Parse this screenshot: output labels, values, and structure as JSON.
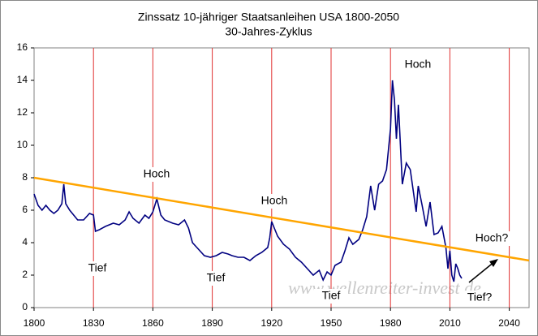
{
  "chart_data": {
    "type": "line",
    "title": "Zinssatz 10-jähriger Staatsanleihen USA 1800-2050",
    "subtitle": "30-Jahres-Zyklus",
    "xlim": [
      1800,
      2050
    ],
    "ylim": [
      0,
      16
    ],
    "xticks": [
      1800,
      1830,
      1860,
      1890,
      1920,
      1950,
      1980,
      2010,
      2040
    ],
    "yticks": [
      0,
      2,
      4,
      6,
      8,
      10,
      12,
      14,
      16
    ],
    "cycle_lines": [
      1830,
      1860,
      1890,
      1920,
      1950,
      1980,
      2010,
      2040
    ],
    "cycle_color": "#e03030",
    "series": [
      {
        "color": "#000080",
        "x": [
          1800,
          1802,
          1804,
          1806,
          1808,
          1810,
          1812,
          1814,
          1815,
          1816,
          1818,
          1820,
          1822,
          1825,
          1828,
          1830,
          1831,
          1833,
          1836,
          1840,
          1843,
          1846,
          1848,
          1850,
          1853,
          1856,
          1858,
          1860,
          1862,
          1864,
          1866,
          1870,
          1873,
          1876,
          1878,
          1880,
          1883,
          1886,
          1889,
          1892,
          1895,
          1898,
          1900,
          1903,
          1906,
          1909,
          1912,
          1915,
          1918,
          1919,
          1920,
          1921,
          1923,
          1926,
          1929,
          1932,
          1935,
          1938,
          1941,
          1944,
          1946,
          1948,
          1950,
          1952,
          1955,
          1957,
          1959,
          1961,
          1964,
          1966,
          1968,
          1970,
          1972,
          1974,
          1976,
          1978,
          1980,
          1981,
          1982,
          1983,
          1984,
          1986,
          1988,
          1990,
          1993,
          1994,
          1996,
          1998,
          2000,
          2002,
          2004,
          2006,
          2008,
          2009,
          2010,
          2011,
          2012,
          2013,
          2014,
          2015,
          2016
        ],
        "values": [
          7.0,
          6.3,
          6.0,
          6.3,
          6.0,
          5.8,
          6.0,
          6.4,
          7.6,
          6.4,
          6.0,
          5.7,
          5.4,
          5.4,
          5.8,
          5.7,
          4.7,
          4.8,
          5.0,
          5.2,
          5.1,
          5.4,
          5.9,
          5.5,
          5.2,
          5.7,
          5.5,
          5.9,
          6.7,
          5.7,
          5.4,
          5.2,
          5.1,
          5.4,
          4.9,
          4.0,
          3.6,
          3.2,
          3.1,
          3.2,
          3.4,
          3.3,
          3.2,
          3.1,
          3.1,
          2.9,
          3.2,
          3.4,
          3.7,
          4.3,
          5.3,
          5.0,
          4.4,
          3.9,
          3.6,
          3.1,
          2.8,
          2.4,
          2.0,
          2.3,
          1.7,
          2.2,
          2.0,
          2.6,
          2.8,
          3.5,
          4.3,
          3.9,
          4.2,
          4.8,
          5.6,
          7.5,
          6.0,
          7.6,
          7.8,
          8.5,
          11.0,
          14.0,
          12.8,
          10.4,
          12.5,
          7.6,
          8.9,
          8.5,
          5.9,
          7.5,
          6.3,
          5.0,
          6.5,
          4.5,
          4.6,
          5.0,
          3.7,
          2.4,
          3.5,
          2.0,
          1.6,
          2.7,
          2.4,
          2.0,
          1.8
        ]
      }
    ],
    "trend": {
      "color": "#ffa500",
      "x": [
        1800,
        2050
      ],
      "values": [
        8.0,
        2.9
      ]
    },
    "annotations": [
      "Hoch",
      "Hoch",
      "Hoch",
      "Hoch?",
      "Tief",
      "Tief",
      "Tief",
      "Tief?"
    ],
    "watermark": "www.wellenreiter-invest.de"
  }
}
